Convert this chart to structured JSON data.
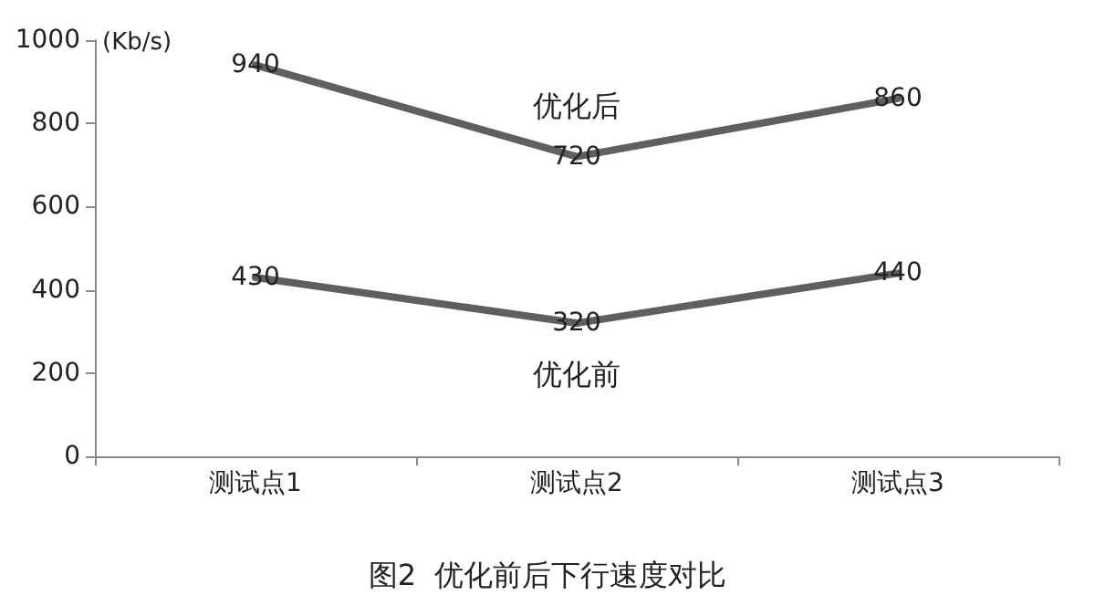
{
  "chart_data": {
    "type": "line",
    "title": "图2  优化前后下行速度对比",
    "ylabel": "(Kb/s)",
    "categories": [
      "测试点1",
      "测试点2",
      "测试点3"
    ],
    "series": [
      {
        "name": "优化后",
        "color": "#5f5f5f",
        "values": [
          940,
          720,
          860
        ]
      },
      {
        "name": "优化前",
        "color": "#5f5f5f",
        "values": [
          430,
          320,
          440
        ]
      }
    ],
    "ylim": [
      0,
      1000
    ],
    "yticks": [
      0,
      200,
      400,
      600,
      800,
      1000
    ],
    "grid": false,
    "marker": "none",
    "line_style": "solid",
    "data_labels": true
  }
}
